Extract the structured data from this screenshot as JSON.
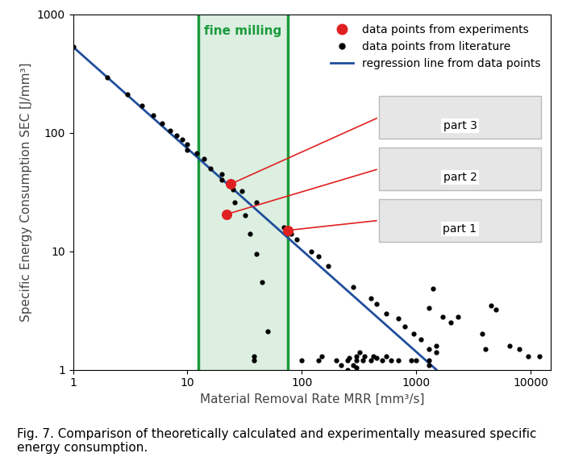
{
  "chart_data": {
    "type": "scatter",
    "caption": "Fig. 7. Comparison of theoretically calculated and experimentally measured specific energy consumption.",
    "xlabel": "Material Removal Rate MRR [mm³/s]",
    "ylabel": "Specific Energy Consumption SEC [J/mm³]",
    "log": true,
    "grid": false,
    "legend": "upper right",
    "xlim": [
      1,
      15000
    ],
    "ylim": [
      1,
      1000
    ],
    "xticks": [
      1,
      10,
      100,
      1000,
      10000
    ],
    "yticks": [
      1,
      10,
      100,
      1000
    ],
    "annotations": [
      {
        "text": "fine milling",
        "x": [
          12.5,
          75
        ],
        "color": "#1a9a3a"
      }
    ],
    "series": [
      {
        "name": "data points from experiments",
        "type": "scatter",
        "color": "#e02020",
        "marker": "o",
        "x": [
          24,
          22,
          75
        ],
        "values": [
          37,
          20.5,
          15
        ],
        "point_labels": [
          "part 3",
          "part 2",
          "part 1"
        ]
      },
      {
        "name": "data points from literature",
        "type": "scatter",
        "color": "#000000",
        "marker": "o",
        "x": [
          1,
          2,
          3,
          4,
          5,
          6,
          7,
          8,
          9,
          10,
          10,
          12,
          14,
          16,
          20,
          20,
          25,
          30,
          26,
          32,
          35,
          40,
          45,
          50,
          38,
          38,
          40,
          70,
          80,
          90,
          120,
          140,
          170,
          280,
          400,
          450,
          550,
          700,
          800,
          950,
          1100,
          1300,
          1500,
          1500,
          1400,
          1300,
          1700,
          2000,
          2300,
          3800,
          4000,
          4500,
          5000,
          6500,
          8000,
          9500,
          12000,
          100,
          140,
          150,
          200,
          220,
          250,
          260,
          280,
          300,
          300,
          320,
          340,
          350,
          400,
          420,
          450,
          500,
          550,
          600,
          700,
          900,
          1000,
          1300,
          1300,
          250,
          300
        ],
        "values": [
          530,
          295,
          210,
          170,
          140,
          120,
          105,
          95,
          88,
          80,
          72,
          67,
          60,
          50,
          45,
          40,
          33,
          32,
          26,
          20,
          14,
          9.5,
          5.5,
          2.1,
          1.3,
          1.2,
          26,
          16,
          14,
          12.5,
          10,
          9,
          7.5,
          5,
          4,
          3.6,
          3,
          2.7,
          2.3,
          2,
          1.8,
          1.5,
          1.4,
          1.6,
          4.8,
          3.3,
          2.8,
          2.5,
          2.8,
          2.0,
          1.5,
          3.5,
          3.2,
          1.6,
          1.5,
          1.3,
          1.3,
          1.2,
          1.2,
          1.3,
          1.2,
          1.1,
          1.2,
          1.25,
          1.1,
          1.2,
          1.3,
          1.4,
          1.2,
          1.3,
          1.2,
          1.3,
          1.25,
          1.2,
          1.3,
          1.2,
          1.2,
          1.2,
          1.2,
          1.1,
          1.2,
          1.0,
          1.05
        ]
      },
      {
        "name": "regression line from data points",
        "type": "line",
        "color": "#1f4e9c",
        "line_style": "solid",
        "x": [
          1,
          1500
        ],
        "values": [
          530,
          1
        ]
      }
    ]
  }
}
